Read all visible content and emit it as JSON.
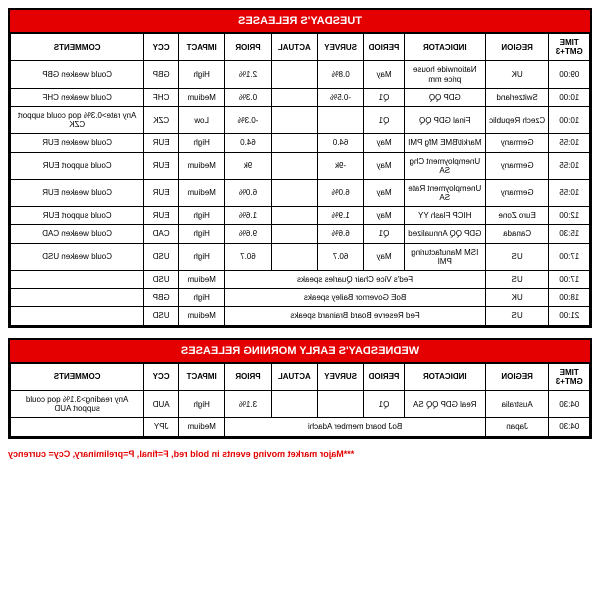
{
  "colors": {
    "header_bg": "#e40000",
    "header_fg": "#ffffff",
    "border": "#000000",
    "footnote": "#e40000",
    "page_bg": "#ffffff"
  },
  "columns": [
    {
      "key": "time",
      "label": "TIME GMT+3"
    },
    {
      "key": "region",
      "label": "REGION"
    },
    {
      "key": "indicator",
      "label": "INDICATOR"
    },
    {
      "key": "period",
      "label": "PERIOD"
    },
    {
      "key": "survey",
      "label": "SURVEY"
    },
    {
      "key": "actual",
      "label": "ACTUAL"
    },
    {
      "key": "prior",
      "label": "PRIOR"
    },
    {
      "key": "impact",
      "label": "IMPACT"
    },
    {
      "key": "ccy",
      "label": "CCY"
    },
    {
      "key": "comments",
      "label": "COMMENTS"
    }
  ],
  "tables": [
    {
      "title": "TUESDAY'S RELEASES",
      "rows": [
        {
          "time": "09:00",
          "region": "UK",
          "indicator": "Nationwide house price mm",
          "period": "May",
          "survey": "0.8%",
          "actual": "",
          "prior": "2.1%",
          "impact": "High",
          "ccy": "GBP",
          "comments": "Could weaken GBP"
        },
        {
          "time": "10:00",
          "region": "Switzerland",
          "indicator": "GDP QQ",
          "period": "Q1",
          "survey": "-0.5%",
          "actual": "",
          "prior": "0.3%",
          "impact": "Medium",
          "ccy": "CHF",
          "comments": "Could weaken CHF"
        },
        {
          "time": "10:00",
          "region": "Czech Republic",
          "indicator": "Final GDP QQ",
          "period": "Q1",
          "survey": "",
          "actual": "",
          "prior": "-0.3%",
          "impact": "Low",
          "ccy": "CZK",
          "comments": "Any rate>0.3% qoq could support CZK"
        },
        {
          "time": "10:55",
          "region": "Germany",
          "indicator": "Markit/BME Mfg PMI",
          "period": "May",
          "survey": "64.0",
          "actual": "",
          "prior": "64.0",
          "impact": "High",
          "ccy": "EUR",
          "comments": "Could weaken EUR"
        },
        {
          "time": "10:55",
          "region": "Germany",
          "indicator": "Unemployment Chg SA",
          "period": "May",
          "survey": "-9k",
          "actual": "",
          "prior": "9k",
          "impact": "Medium",
          "ccy": "EUR",
          "comments": "Could support EUR"
        },
        {
          "time": "10:55",
          "region": "Germany",
          "indicator": "Unemployment Rate SA",
          "period": "May",
          "survey": "6.0%",
          "actual": "",
          "prior": "6.0%",
          "impact": "Medium",
          "ccy": "EUR",
          "comments": "Could weaken EUR"
        },
        {
          "time": "12:00",
          "region": "Euro Zone",
          "indicator": "HICP Flash YY",
          "period": "May",
          "survey": "1.9%",
          "actual": "",
          "prior": "1.6%",
          "impact": "High",
          "ccy": "EUR",
          "comments": "Could support EUR"
        },
        {
          "time": "15:30",
          "region": "Canada",
          "indicator": "GDP QQ Annualized",
          "period": "Q1",
          "survey": "6.6%",
          "actual": "",
          "prior": "9.6%",
          "impact": "High",
          "ccy": "CAD",
          "comments": "Could weaken CAD"
        },
        {
          "time": "17:00",
          "region": "US",
          "indicator": "ISM Manufacturing PMI",
          "period": "May",
          "survey": "60.7",
          "actual": "",
          "prior": "60.7",
          "impact": "High",
          "ccy": "USD",
          "comments": "Could weaken USD"
        },
        {
          "time": "17:00",
          "region": "US",
          "span_text": "Fed's Vice Chair Quarles speaks",
          "impact": "Medium",
          "ccy": "USD",
          "comments": ""
        },
        {
          "time": "18:00",
          "region": "UK",
          "span_text": "BoE Governor Bailey speaks",
          "impact": "High",
          "ccy": "GBP",
          "comments": ""
        },
        {
          "time": "21:00",
          "region": "US",
          "span_text": "Fed Reserve Board Brainard speaks",
          "impact": "Medium",
          "ccy": "USD",
          "comments": ""
        }
      ]
    },
    {
      "title": "WEDNESDAY'S EARLY MORNING RELEASES",
      "rows": [
        {
          "time": "04:30",
          "region": "Australia",
          "indicator": "Real GDP QQ SA",
          "period": "Q1",
          "survey": "",
          "actual": "",
          "prior": "3.1%",
          "impact": "High",
          "ccy": "AUD",
          "comments": "Any reading>3.1% qoq could support AUD"
        },
        {
          "time": "04:30",
          "region": "Japan",
          "span_text": "BoJ board member Adachi",
          "impact": "Medium",
          "ccy": "JPY",
          "comments": ""
        }
      ]
    }
  ],
  "footnote": "***Major market moving events in bold red, F=final, P=preliminary, Ccy= currency"
}
